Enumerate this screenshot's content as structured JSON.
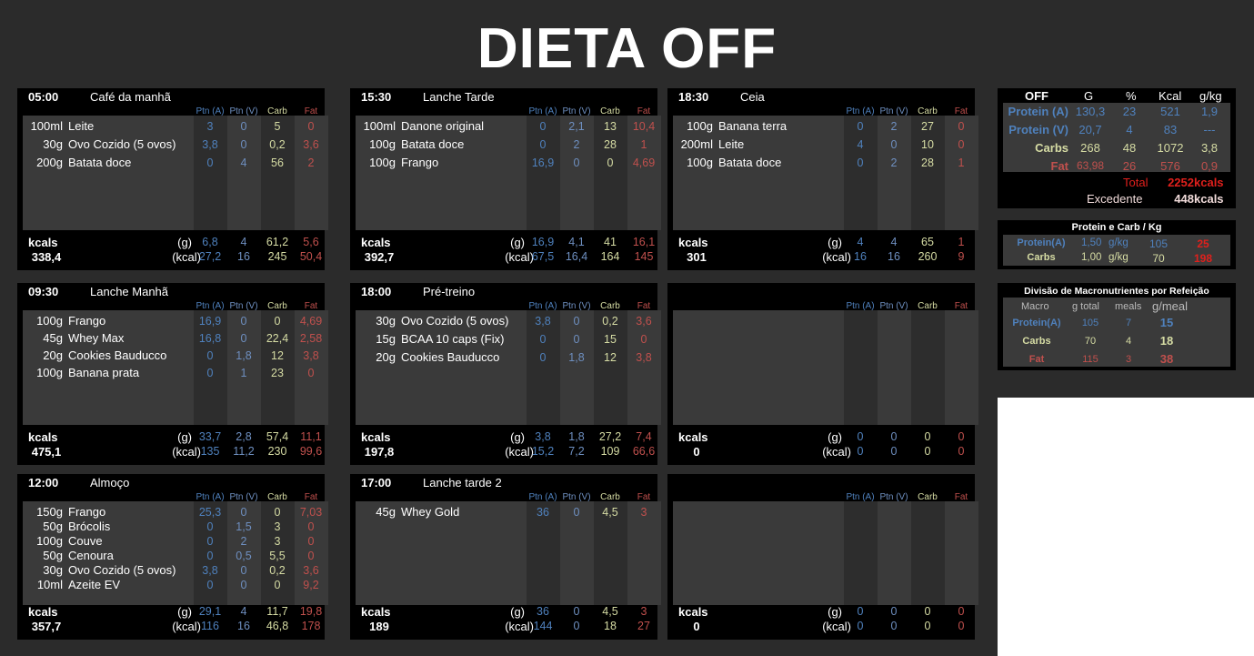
{
  "title": "DIETA OFF",
  "headers": {
    "ptn_a": "Ptn (A)",
    "ptn_v": "Ptn (V)",
    "carb": "Carb",
    "fat": "Fat"
  },
  "labels": {
    "kcals": "kcals",
    "g": "(g)",
    "kcal": "(kcal)"
  },
  "meals": [
    {
      "time": "05:00",
      "name": "Café da manhã",
      "items": [
        {
          "qty": "100ml",
          "food": "Leite",
          "a": "3",
          "v": "0",
          "c": "5",
          "f": "0"
        },
        {
          "qty": "30g",
          "food": "Ovo Cozido (5 ovos)",
          "a": "3,8",
          "v": "0",
          "c": "0,2",
          "f": "3,6"
        },
        {
          "qty": "200g",
          "food": "Batata doce",
          "a": "0",
          "v": "4",
          "c": "56",
          "f": "2"
        }
      ],
      "total_kcal": "338,4",
      "g": {
        "a": "6,8",
        "v": "4",
        "c": "61,2",
        "f": "5,6"
      },
      "kcal": {
        "a": "27,2",
        "v": "16",
        "c": "245",
        "f": "50,4"
      }
    },
    {
      "time": "15:30",
      "name": "Lanche Tarde",
      "items": [
        {
          "qty": "100ml",
          "food": "Danone original",
          "a": "0",
          "v": "2,1",
          "c": "13",
          "f": "10,4"
        },
        {
          "qty": "100g",
          "food": "Batata doce",
          "a": "0",
          "v": "2",
          "c": "28",
          "f": "1"
        },
        {
          "qty": "100g",
          "food": "Frango",
          "a": "16,9",
          "v": "0",
          "c": "0",
          "f": "4,69"
        }
      ],
      "total_kcal": "392,7",
      "g": {
        "a": "16,9",
        "v": "4,1",
        "c": "41",
        "f": "16,1"
      },
      "kcal": {
        "a": "67,5",
        "v": "16,4",
        "c": "164",
        "f": "145"
      }
    },
    {
      "time": "18:30",
      "name": "Ceia",
      "items": [
        {
          "qty": "100g",
          "food": "Banana terra",
          "a": "0",
          "v": "2",
          "c": "27",
          "f": "0"
        },
        {
          "qty": "200ml",
          "food": "Leite",
          "a": "4",
          "v": "0",
          "c": "10",
          "f": "0"
        },
        {
          "qty": "100g",
          "food": "Batata doce",
          "a": "0",
          "v": "2",
          "c": "28",
          "f": "1"
        }
      ],
      "total_kcal": "301",
      "g": {
        "a": "4",
        "v": "4",
        "c": "65",
        "f": "1"
      },
      "kcal": {
        "a": "16",
        "v": "16",
        "c": "260",
        "f": "9"
      }
    },
    {
      "time": "09:30",
      "name": "Lanche Manhã",
      "items": [
        {
          "qty": "100g",
          "food": "Frango",
          "a": "16,9",
          "v": "0",
          "c": "0",
          "f": "4,69"
        },
        {
          "qty": "45g",
          "food": "Whey Max",
          "a": "16,8",
          "v": "0",
          "c": "22,4",
          "f": "2,58"
        },
        {
          "qty": "20g",
          "food": "Cookies Bauducco",
          "a": "0",
          "v": "1,8",
          "c": "12",
          "f": "3,8"
        },
        {
          "qty": "100g",
          "food": "Banana prata",
          "a": "0",
          "v": "1",
          "c": "23",
          "f": "0"
        }
      ],
      "total_kcal": "475,1",
      "g": {
        "a": "33,7",
        "v": "2,8",
        "c": "57,4",
        "f": "11,1"
      },
      "kcal": {
        "a": "135",
        "v": "11,2",
        "c": "230",
        "f": "99,6"
      }
    },
    {
      "time": "18:00",
      "name": "Pré-treino",
      "items": [
        {
          "qty": "30g",
          "food": "Ovo Cozido (5 ovos)",
          "a": "3,8",
          "v": "0",
          "c": "0,2",
          "f": "3,6"
        },
        {
          "qty": "15g",
          "food": "BCAA 10 caps (Fix)",
          "a": "0",
          "v": "0",
          "c": "15",
          "f": "0"
        },
        {
          "qty": "20g",
          "food": "Cookies Bauducco",
          "a": "0",
          "v": "1,8",
          "c": "12",
          "f": "3,8"
        }
      ],
      "total_kcal": "197,8",
      "g": {
        "a": "3,8",
        "v": "1,8",
        "c": "27,2",
        "f": "7,4"
      },
      "kcal": {
        "a": "15,2",
        "v": "7,2",
        "c": "109",
        "f": "66,6"
      }
    },
    {
      "time": "",
      "name": "",
      "items": [],
      "total_kcal": "0",
      "g": {
        "a": "0",
        "v": "0",
        "c": "0",
        "f": "0"
      },
      "kcal": {
        "a": "0",
        "v": "0",
        "c": "0",
        "f": "0"
      }
    },
    {
      "time": "12:00",
      "name": "Almoço",
      "items": [
        {
          "qty": "150g",
          "food": "Frango",
          "a": "25,3",
          "v": "0",
          "c": "0",
          "f": "7,03"
        },
        {
          "qty": "50g",
          "food": "Brócolis",
          "a": "0",
          "v": "1,5",
          "c": "3",
          "f": "0"
        },
        {
          "qty": "100g",
          "food": "Couve",
          "a": "0",
          "v": "2",
          "c": "3",
          "f": "0"
        },
        {
          "qty": "50g",
          "food": "Cenoura",
          "a": "0",
          "v": "0,5",
          "c": "5,5",
          "f": "0"
        },
        {
          "qty": "30g",
          "food": "Ovo Cozido (5 ovos)",
          "a": "3,8",
          "v": "0",
          "c": "0,2",
          "f": "3,6"
        },
        {
          "qty": "10ml",
          "food": "Azeite EV",
          "a": "0",
          "v": "0",
          "c": "0",
          "f": "9,2"
        }
      ],
      "total_kcal": "357,7",
      "g": {
        "a": "29,1",
        "v": "4",
        "c": "11,7",
        "f": "19,8"
      },
      "kcal": {
        "a": "116",
        "v": "16",
        "c": "46,8",
        "f": "178"
      }
    },
    {
      "time": "17:00",
      "name": "Lanche tarde 2",
      "items": [
        {
          "qty": "45g",
          "food": "Whey Gold",
          "a": "36",
          "v": "0",
          "c": "4,5",
          "f": "3"
        }
      ],
      "total_kcal": "189",
      "g": {
        "a": "36",
        "v": "0",
        "c": "4,5",
        "f": "3"
      },
      "kcal": {
        "a": "144",
        "v": "0",
        "c": "18",
        "f": "27"
      }
    },
    {
      "time": "",
      "name": "",
      "items": [],
      "total_kcal": "0",
      "g": {
        "a": "0",
        "v": "0",
        "c": "0",
        "f": "0"
      },
      "kcal": {
        "a": "0",
        "v": "0",
        "c": "0",
        "f": "0"
      }
    }
  ],
  "summary": {
    "title": "OFF",
    "col_g": "G",
    "col_pct": "%",
    "col_kcal": "Kcal",
    "col_gkg": "g/kg",
    "rows": [
      {
        "label": "Protein (A)",
        "g": "130,3",
        "pct": "23",
        "kcal": "521",
        "gkg": "1,9"
      },
      {
        "label": "Protein (V)",
        "g": "20,7",
        "pct": "4",
        "kcal": "83",
        "gkg": "---"
      },
      {
        "label": "Carbs",
        "g": "268",
        "pct": "48",
        "kcal": "1072",
        "gkg": "3,8"
      },
      {
        "label": "Fat",
        "g": "63,98",
        "pct": "26",
        "kcal": "576",
        "gkg": "0,9"
      }
    ],
    "total_label": "Total",
    "total_value": "2252",
    "total_unit": "kcals",
    "exc_label": "Excedente",
    "exc_value": "448",
    "exc_unit": "kcals"
  },
  "ratio": {
    "title": "Protein e Carb / Kg",
    "rows": [
      {
        "label": "Protein(A)",
        "val": "1,50",
        "unit": "g/kg",
        "n": "105",
        "r": "25"
      },
      {
        "label": "Carbs",
        "val": "1,00",
        "unit": "g/kg",
        "n": "70",
        "r": "198"
      }
    ]
  },
  "division": {
    "title": "Divisão de Macronutrientes por Refeição",
    "cols": {
      "macro": "Macro",
      "gtotal": "g total",
      "meals": "meals",
      "gmeal": "g/meal"
    },
    "rows": [
      {
        "label": "Protein(A)",
        "gtotal": "105",
        "meals": "7",
        "gmeal": "15"
      },
      {
        "label": "Carbs",
        "gtotal": "70",
        "meals": "4",
        "gmeal": "18"
      },
      {
        "label": "Fat",
        "gtotal": "115",
        "meals": "3",
        "gmeal": "38"
      }
    ]
  },
  "colors": {
    "protein_a": "#4f81bd",
    "protein_v": "#6e8fc0",
    "carb": "#d6dca4",
    "fat": "#c0504d",
    "total_red": "#e0201c"
  }
}
